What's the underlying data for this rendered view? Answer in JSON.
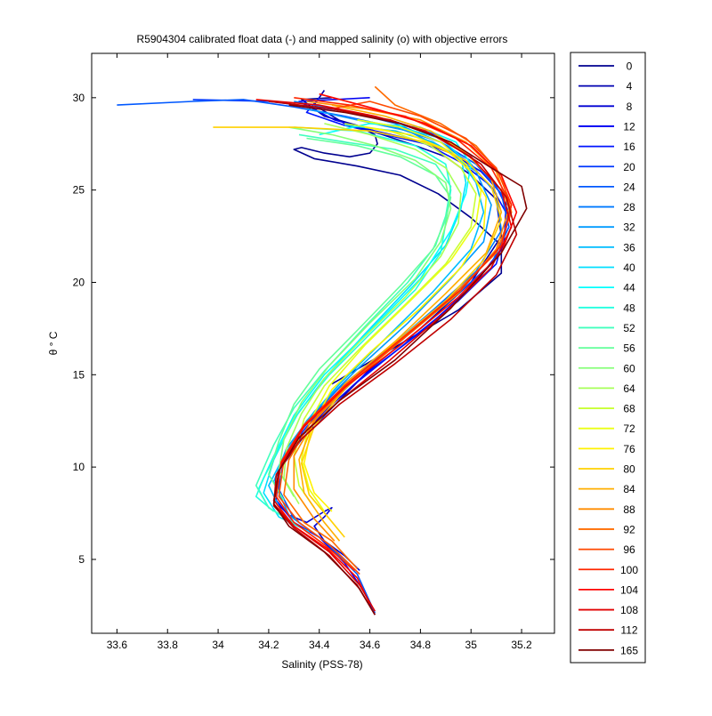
{
  "chart_data": {
    "type": "line",
    "title": "R5904304 calibrated float data (-) and mapped salinity (o) with objective errors",
    "xlabel": "Salinity (PSS-78)",
    "ylabel": "θ ° C",
    "xlim": [
      33.5,
      35.33
    ],
    "ylim": [
      1,
      32.4
    ],
    "xticks": [
      "33.6",
      "33.8",
      "34",
      "34.2",
      "34.4",
      "34.6",
      "34.8",
      "35",
      "35.2"
    ],
    "yticks": [
      "5",
      "10",
      "15",
      "20",
      "25",
      "30"
    ],
    "grid": false,
    "legend_position": "right-outside",
    "series": [
      {
        "name": "0",
        "color": "#00008F",
        "x": [
          34.45,
          34.33,
          34.42,
          34.55,
          34.62,
          34.63,
          34.6,
          34.52,
          34.42,
          34.33,
          34.3,
          34.38,
          34.55,
          34.72,
          34.87,
          35.0,
          35.12,
          35.12,
          34.95,
          34.7,
          34.45
        ],
        "y": [
          30.0,
          29.9,
          29.0,
          28.5,
          28.0,
          27.5,
          27.0,
          26.8,
          27.0,
          27.3,
          27.2,
          26.7,
          26.3,
          25.8,
          24.8,
          23.5,
          22.0,
          20.5,
          18.5,
          16.5,
          14.5
        ]
      },
      {
        "name": "4",
        "color": "#0000B0",
        "x": [
          34.42,
          34.38,
          34.5,
          34.65,
          34.78,
          34.9,
          35.0,
          35.1,
          35.12,
          35.0,
          34.8,
          34.6,
          34.45,
          34.33,
          34.25
        ],
        "y": [
          30.4,
          29.6,
          28.6,
          28.0,
          27.4,
          26.8,
          25.8,
          24.5,
          22.5,
          20.0,
          17.5,
          15.3,
          13.2,
          11.5,
          10.0
        ]
      },
      {
        "name": "8",
        "color": "#0000D2",
        "x": [
          34.25,
          34.22,
          34.28,
          34.35,
          34.42,
          34.45,
          34.42,
          34.38,
          34.42,
          34.5,
          34.56
        ],
        "y": [
          9.5,
          8.2,
          7.4,
          7.0,
          7.6,
          7.8,
          7.3,
          6.8,
          6.0,
          5.2,
          4.4
        ]
      },
      {
        "name": "12",
        "color": "#0000F3",
        "x": [
          34.6,
          34.32,
          34.46,
          34.62,
          34.78,
          34.92,
          35.04,
          35.14,
          35.13,
          35.02,
          34.82,
          34.58,
          34.42,
          34.3,
          34.24,
          34.23,
          34.3,
          34.4,
          34.5,
          34.58,
          34.62
        ],
        "y": [
          30.0,
          29.8,
          28.8,
          28.2,
          27.7,
          27.0,
          26.0,
          24.5,
          22.0,
          20.0,
          17.5,
          15.0,
          13.0,
          11.2,
          9.8,
          8.2,
          7.0,
          6.2,
          4.8,
          3.2,
          2.0
        ]
      },
      {
        "name": "16",
        "color": "#0015FF",
        "x": [
          34.4,
          34.35,
          34.5,
          34.66,
          34.82,
          34.96,
          35.08,
          35.15,
          35.1,
          34.95,
          34.75,
          34.55
        ],
        "y": [
          30.0,
          29.2,
          28.5,
          28.0,
          27.5,
          26.5,
          25.2,
          23.5,
          21.0,
          19.0,
          16.8,
          14.6
        ]
      },
      {
        "name": "20",
        "color": "#0037FF",
        "x": [
          33.9,
          34.2,
          34.5,
          34.7,
          34.86,
          35.0,
          35.1,
          35.15,
          35.12,
          35.0,
          34.8,
          34.58,
          34.4,
          34.28,
          34.23
        ],
        "y": [
          29.9,
          29.8,
          29.3,
          28.7,
          28.0,
          26.8,
          25.2,
          23.8,
          22.0,
          20.2,
          17.8,
          15.2,
          13.0,
          11.0,
          9.5
        ]
      },
      {
        "name": "24",
        "color": "#0058FF",
        "x": [
          33.6,
          33.9,
          34.1,
          34.3,
          34.5,
          34.7,
          34.88,
          35.02,
          35.12,
          35.15,
          35.08,
          34.9,
          34.68,
          34.48,
          34.34,
          34.26,
          34.24,
          34.3,
          34.42,
          34.55,
          34.62
        ],
        "y": [
          29.6,
          29.8,
          29.9,
          29.5,
          29.0,
          28.4,
          27.6,
          26.4,
          24.8,
          23.0,
          21.0,
          18.8,
          16.5,
          14.3,
          12.3,
          10.5,
          8.8,
          7.2,
          6.0,
          4.2,
          2.1
        ]
      },
      {
        "name": "28",
        "color": "#007AFF",
        "x": [
          34.3,
          34.5,
          34.7,
          34.88,
          35.0,
          35.1,
          35.12,
          35.02,
          34.85,
          34.62,
          34.45,
          34.38,
          34.3
        ],
        "y": [
          29.8,
          29.3,
          28.6,
          27.6,
          26.4,
          24.8,
          22.8,
          20.6,
          18.5,
          15.8,
          13.5,
          12.8,
          11.5
        ]
      },
      {
        "name": "32",
        "color": "#009BFF",
        "x": [
          34.35,
          34.55,
          34.75,
          34.9,
          35.02,
          35.08,
          35.05,
          34.92,
          34.75,
          34.55,
          34.38,
          34.27,
          34.22,
          34.28,
          34.4
        ],
        "y": [
          29.4,
          28.8,
          28.2,
          27.2,
          26.0,
          24.2,
          22.2,
          20.2,
          17.8,
          15.3,
          13.0,
          11.0,
          9.2,
          7.4,
          6.2
        ]
      },
      {
        "name": "36",
        "color": "#00BDFF",
        "x": [
          34.5,
          34.7,
          34.85,
          34.95,
          35.02,
          35.05,
          35.0,
          34.85,
          34.65,
          34.48,
          34.35,
          34.26,
          34.2,
          34.25
        ],
        "y": [
          28.5,
          28.2,
          27.6,
          26.8,
          25.4,
          23.8,
          21.8,
          19.5,
          16.8,
          14.5,
          12.5,
          10.6,
          9.0,
          7.6
        ]
      },
      {
        "name": "40",
        "color": "#00DFFF",
        "x": [
          34.55,
          34.72,
          34.88,
          34.96,
          34.98,
          34.96,
          34.9,
          34.76,
          34.58,
          34.42,
          34.3,
          34.22,
          34.18,
          34.24,
          34.36
        ],
        "y": [
          28.8,
          28.4,
          27.8,
          26.8,
          25.4,
          24.0,
          22.0,
          19.8,
          17.2,
          14.8,
          12.6,
          10.4,
          8.6,
          7.3,
          6.5
        ]
      },
      {
        "name": "44",
        "color": "#00FFFF",
        "x": [
          34.4,
          34.6,
          34.8,
          34.94,
          35.0,
          34.98,
          34.92,
          34.8,
          34.6,
          34.42,
          34.3,
          34.22,
          34.16,
          34.2,
          34.3
        ],
        "y": [
          28.0,
          28.6,
          28.4,
          27.6,
          26.4,
          24.8,
          22.8,
          20.2,
          17.4,
          15.0,
          12.8,
          10.6,
          8.8,
          7.8,
          7.0
        ]
      },
      {
        "name": "48",
        "color": "#21FFDF",
        "x": [
          34.3,
          34.55,
          34.78,
          34.9,
          34.92,
          34.9,
          34.88,
          34.78,
          34.6,
          34.44,
          34.32,
          34.24,
          34.18,
          34.15,
          34.22
        ],
        "y": [
          28.4,
          28.2,
          27.4,
          26.4,
          25.0,
          23.2,
          21.6,
          19.6,
          17.2,
          15.0,
          13.0,
          11.0,
          9.4,
          8.4,
          7.6
        ]
      },
      {
        "name": "52",
        "color": "#42FFBD",
        "x": [
          34.32,
          34.5,
          34.7,
          34.86,
          34.92,
          34.9,
          34.86,
          34.75,
          34.58,
          34.42,
          34.3,
          34.22,
          34.15,
          34.2,
          34.32
        ],
        "y": [
          28.0,
          27.6,
          27.2,
          26.4,
          25.2,
          23.6,
          22.0,
          20.0,
          17.6,
          15.2,
          13.2,
          11.2,
          9.0,
          7.8,
          6.8
        ]
      },
      {
        "name": "56",
        "color": "#64FF9B",
        "x": [
          34.35,
          34.55,
          34.72,
          34.86,
          34.92,
          34.9,
          34.85,
          34.72,
          34.55,
          34.4,
          34.3,
          34.24,
          34.2,
          34.26
        ],
        "y": [
          27.8,
          27.4,
          26.8,
          25.8,
          24.6,
          23.4,
          21.8,
          19.8,
          17.4,
          15.3,
          13.4,
          11.4,
          9.6,
          8.2
        ]
      },
      {
        "name": "60",
        "color": "#86FF79",
        "x": [
          34.28,
          34.45,
          34.62,
          34.78,
          34.9,
          34.92,
          34.88,
          34.78,
          34.6,
          34.44,
          34.33,
          34.26,
          34.24,
          34.3
        ],
        "y": [
          28.4,
          28.0,
          27.4,
          26.6,
          25.4,
          24.0,
          22.2,
          20.2,
          17.8,
          15.5,
          13.5,
          11.5,
          9.8,
          8.4
        ]
      },
      {
        "name": "64",
        "color": "#A7FF58",
        "x": [
          34.42,
          34.6,
          34.78,
          34.9,
          34.96,
          34.95,
          34.88,
          34.74,
          34.56,
          34.42,
          34.33,
          34.27,
          34.26,
          34.32
        ],
        "y": [
          28.6,
          28.0,
          27.2,
          26.2,
          24.8,
          23.2,
          21.4,
          19.2,
          16.8,
          14.8,
          12.9,
          11.0,
          9.4,
          8.0
        ]
      },
      {
        "name": "68",
        "color": "#C9FF36",
        "x": [
          34.5,
          34.68,
          34.84,
          34.96,
          35.02,
          35.0,
          34.9,
          34.74,
          34.56,
          34.42,
          34.34,
          34.3,
          34.32,
          34.38
        ],
        "y": [
          28.6,
          28.2,
          27.4,
          26.2,
          24.8,
          23.0,
          21.0,
          18.8,
          16.4,
          14.4,
          12.6,
          10.6,
          9.0,
          7.8
        ]
      },
      {
        "name": "72",
        "color": "#EBFF14",
        "x": [
          34.55,
          34.72,
          34.88,
          34.98,
          35.04,
          35.02,
          34.92,
          34.76,
          34.58,
          34.44,
          34.36,
          34.33,
          34.36,
          34.42
        ],
        "y": [
          28.8,
          28.4,
          27.6,
          26.4,
          25.0,
          23.2,
          21.2,
          19.0,
          16.6,
          14.4,
          12.4,
          10.4,
          8.8,
          7.6
        ]
      },
      {
        "name": "76",
        "color": "#FFF200",
        "x": [
          34.58,
          34.76,
          34.9,
          35.0,
          35.06,
          35.05,
          34.96,
          34.8,
          34.6,
          34.45,
          34.37,
          34.34,
          34.38,
          34.45
        ],
        "y": [
          28.4,
          28.0,
          27.2,
          26.0,
          24.6,
          22.8,
          20.8,
          18.6,
          16.2,
          14.2,
          12.2,
          10.2,
          8.6,
          7.6
        ]
      },
      {
        "name": "80",
        "color": "#FFD000",
        "x": [
          33.98,
          34.3,
          34.6,
          34.82,
          34.98,
          35.08,
          35.12,
          35.05,
          34.9,
          34.68,
          34.5,
          34.38,
          34.33,
          34.36,
          34.44,
          34.5
        ],
        "y": [
          28.4,
          28.4,
          28.2,
          27.6,
          26.6,
          25.2,
          23.4,
          21.2,
          19.0,
          16.5,
          14.2,
          12.2,
          10.2,
          8.5,
          7.2,
          6.2
        ]
      },
      {
        "name": "84",
        "color": "#FFAE00",
        "x": [
          34.45,
          34.66,
          34.84,
          34.98,
          35.08,
          35.12,
          35.06,
          34.9,
          34.7,
          34.5,
          34.38,
          34.32,
          34.34,
          34.42,
          34.48
        ],
        "y": [
          29.6,
          29.0,
          28.2,
          27.0,
          25.6,
          23.8,
          21.6,
          19.4,
          16.8,
          14.5,
          12.5,
          10.4,
          8.6,
          7.0,
          6.0
        ]
      },
      {
        "name": "88",
        "color": "#FF8C00",
        "x": [
          34.35,
          34.58,
          34.8,
          34.98,
          35.1,
          35.15,
          35.1,
          34.95,
          34.72,
          34.52,
          34.38,
          34.3,
          34.3,
          34.38,
          34.46
        ],
        "y": [
          29.8,
          29.4,
          28.8,
          27.6,
          26.0,
          24.0,
          21.8,
          19.4,
          16.8,
          14.5,
          12.5,
          10.6,
          8.8,
          7.2,
          6.0
        ]
      },
      {
        "name": "92",
        "color": "#FF6B00",
        "x": [
          34.62,
          34.7,
          34.88,
          35.02,
          35.12,
          35.16,
          35.1,
          34.92,
          34.7,
          34.5,
          34.36,
          34.28,
          34.26,
          34.34,
          34.45,
          34.55
        ],
        "y": [
          30.6,
          29.6,
          28.6,
          27.4,
          25.8,
          23.8,
          21.6,
          19.2,
          16.6,
          14.3,
          12.3,
          10.4,
          8.5,
          7.0,
          6.0,
          4.5
        ]
      },
      {
        "name": "96",
        "color": "#FF4900",
        "x": [
          34.45,
          34.6,
          34.8,
          34.98,
          35.1,
          35.16,
          35.12,
          34.96,
          34.72,
          34.5,
          34.35,
          34.26,
          34.24,
          34.32,
          34.44,
          34.56
        ],
        "y": [
          29.4,
          29.8,
          29.0,
          27.8,
          26.2,
          24.2,
          22.0,
          19.6,
          16.8,
          14.4,
          12.4,
          10.4,
          8.4,
          7.0,
          5.8,
          4.2
        ]
      },
      {
        "name": "100",
        "color": "#FF2700",
        "x": [
          34.3,
          34.52,
          34.74,
          34.94,
          35.08,
          35.16,
          35.12,
          34.96,
          34.72,
          34.5,
          34.34,
          34.25,
          34.23,
          34.3,
          34.42,
          34.54
        ],
        "y": [
          30.0,
          29.6,
          29.0,
          27.8,
          26.2,
          24.2,
          22.0,
          19.6,
          16.9,
          14.4,
          12.3,
          10.3,
          8.4,
          7.0,
          5.8,
          4.4
        ]
      },
      {
        "name": "104",
        "color": "#FF0500",
        "x": [
          34.4,
          34.62,
          34.82,
          35.0,
          35.12,
          35.18,
          35.12,
          34.95,
          34.72,
          34.5,
          34.34,
          34.25,
          34.22,
          34.3,
          34.43,
          34.55,
          34.6
        ],
        "y": [
          30.2,
          29.4,
          28.6,
          27.4,
          25.8,
          23.8,
          21.6,
          19.2,
          16.6,
          14.3,
          12.2,
          10.2,
          8.2,
          6.8,
          5.6,
          4.0,
          2.6
        ]
      },
      {
        "name": "108",
        "color": "#E20000",
        "x": [
          34.15,
          34.4,
          34.62,
          34.82,
          35.0,
          35.12,
          35.16,
          35.08,
          34.9,
          34.68,
          34.48,
          34.32,
          34.24,
          34.22,
          34.3,
          34.44,
          34.56,
          34.62
        ],
        "y": [
          29.9,
          29.6,
          29.0,
          28.2,
          26.8,
          25.0,
          23.0,
          20.8,
          18.4,
          15.8,
          13.6,
          11.6,
          9.8,
          8.0,
          6.8,
          5.4,
          3.6,
          2.2
        ]
      },
      {
        "name": "112",
        "color": "#C00000",
        "x": [
          34.2,
          34.45,
          34.68,
          34.88,
          35.04,
          35.14,
          35.18,
          35.1,
          34.92,
          34.7,
          34.48,
          34.32,
          34.23,
          34.22,
          34.3,
          34.44,
          34.56,
          34.62
        ],
        "y": [
          29.8,
          29.4,
          28.8,
          27.8,
          26.4,
          24.6,
          22.6,
          20.4,
          18.0,
          15.6,
          13.4,
          11.4,
          9.6,
          7.9,
          6.7,
          5.2,
          3.4,
          2.0
        ]
      },
      {
        "name": "165",
        "color": "#800000",
        "x": [
          34.28,
          34.5,
          34.72,
          34.92,
          35.08,
          35.2,
          35.22,
          35.12,
          34.92,
          34.7,
          34.48,
          34.32,
          34.24,
          34.22,
          34.28,
          34.42,
          34.55,
          34.62
        ],
        "y": [
          29.6,
          29.2,
          28.6,
          27.6,
          26.2,
          25.2,
          24.0,
          21.6,
          18.6,
          15.8,
          13.6,
          11.6,
          9.8,
          8.0,
          6.8,
          5.4,
          3.6,
          2.0
        ]
      }
    ]
  }
}
